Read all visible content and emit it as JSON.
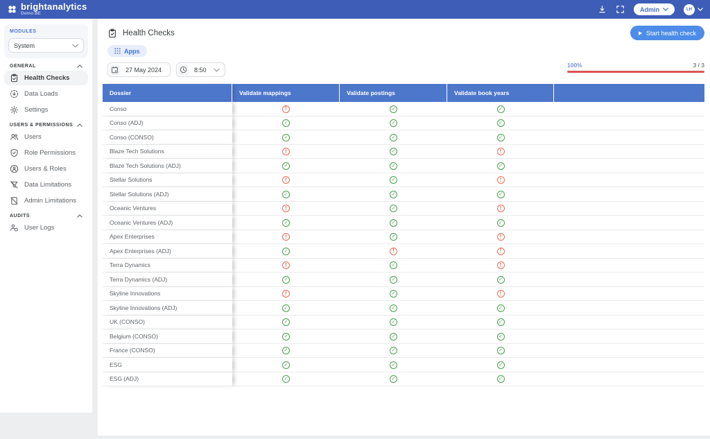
{
  "colors": {
    "topbar_blue": "#3d5db6",
    "table_header_blue": "#4d77cb",
    "accent_blue": "#4d8ce8",
    "success_green": "#46a24a",
    "error_red": "#ec6a55",
    "progress_bar_red": "#dd5353"
  },
  "topbar": {
    "brand": "brightanalytics",
    "environment": "Demo BE",
    "admin_label": "Admin",
    "avatar_initials": "LH"
  },
  "sidebar": {
    "modules_label": "MODULES",
    "module_value": "System",
    "sections": [
      {
        "label": "GENERAL",
        "items": [
          {
            "label": "Health Checks"
          },
          {
            "label": "Data Loads"
          },
          {
            "label": "Settings"
          }
        ]
      },
      {
        "label": "USERS & PERMISSIONS",
        "items": [
          {
            "label": "Users"
          },
          {
            "label": "Role Permissions"
          },
          {
            "label": "Users & Roles"
          },
          {
            "label": "Data Limitations"
          },
          {
            "label": "Admin Limitations"
          }
        ]
      },
      {
        "label": "AUDITS",
        "items": [
          {
            "label": "User Logs"
          }
        ]
      }
    ]
  },
  "main": {
    "title": "Health Checks",
    "start_button_label": "Start health check",
    "apps_button_label": "Apps",
    "date_value": "27 May 2024",
    "time_value": "8:50",
    "progress": {
      "percent": "100%",
      "count": "3 / 3"
    },
    "table": {
      "columns": [
        "Dossier",
        "Validate mappings",
        "Validate postings",
        "Validate book years"
      ],
      "status_icons": {
        "ok": "✓",
        "error": "!"
      },
      "rows": [
        {
          "dossier": "Conso",
          "statuses": [
            "error",
            "ok",
            "ok"
          ]
        },
        {
          "dossier": "Conso (ADJ)",
          "statuses": [
            "ok",
            "ok",
            "ok"
          ]
        },
        {
          "dossier": "Conso (CONSO)",
          "statuses": [
            "ok",
            "ok",
            "ok"
          ]
        },
        {
          "dossier": "Blaze Tech Solutions",
          "statuses": [
            "error",
            "ok",
            "error"
          ]
        },
        {
          "dossier": "Blaze Tech Solutions (ADJ)",
          "statuses": [
            "ok",
            "ok",
            "ok"
          ]
        },
        {
          "dossier": "Stellar Solutions",
          "statuses": [
            "error",
            "ok",
            "error"
          ]
        },
        {
          "dossier": "Stellar Solutions (ADJ)",
          "statuses": [
            "ok",
            "ok",
            "ok"
          ]
        },
        {
          "dossier": "Oceanic Ventures",
          "statuses": [
            "error",
            "ok",
            "error"
          ]
        },
        {
          "dossier": "Oceanic Ventures (ADJ)",
          "statuses": [
            "ok",
            "ok",
            "ok"
          ]
        },
        {
          "dossier": "Apex Enterprises",
          "statuses": [
            "error",
            "ok",
            "error"
          ]
        },
        {
          "dossier": "Apex Enterprises (ADJ)",
          "statuses": [
            "ok",
            "error",
            "error"
          ]
        },
        {
          "dossier": "Terra Dynamics",
          "statuses": [
            "error",
            "ok",
            "error"
          ]
        },
        {
          "dossier": "Terra Dynamics (ADJ)",
          "statuses": [
            "ok",
            "ok",
            "ok"
          ]
        },
        {
          "dossier": "Skyline Innovations",
          "statuses": [
            "error",
            "ok",
            "error"
          ]
        },
        {
          "dossier": "Skyline Innovations (ADJ)",
          "statuses": [
            "ok",
            "ok",
            "ok"
          ]
        },
        {
          "dossier": "UK (CONSO)",
          "statuses": [
            "ok",
            "ok",
            "ok"
          ]
        },
        {
          "dossier": "Belgium (CONSO)",
          "statuses": [
            "ok",
            "ok",
            "ok"
          ]
        },
        {
          "dossier": "France (CONSO)",
          "statuses": [
            "ok",
            "ok",
            "ok"
          ]
        },
        {
          "dossier": "ESG",
          "statuses": [
            "ok",
            "ok",
            "ok"
          ]
        },
        {
          "dossier": "ESG (ADJ)",
          "statuses": [
            "ok",
            "ok",
            "ok"
          ]
        }
      ]
    }
  }
}
